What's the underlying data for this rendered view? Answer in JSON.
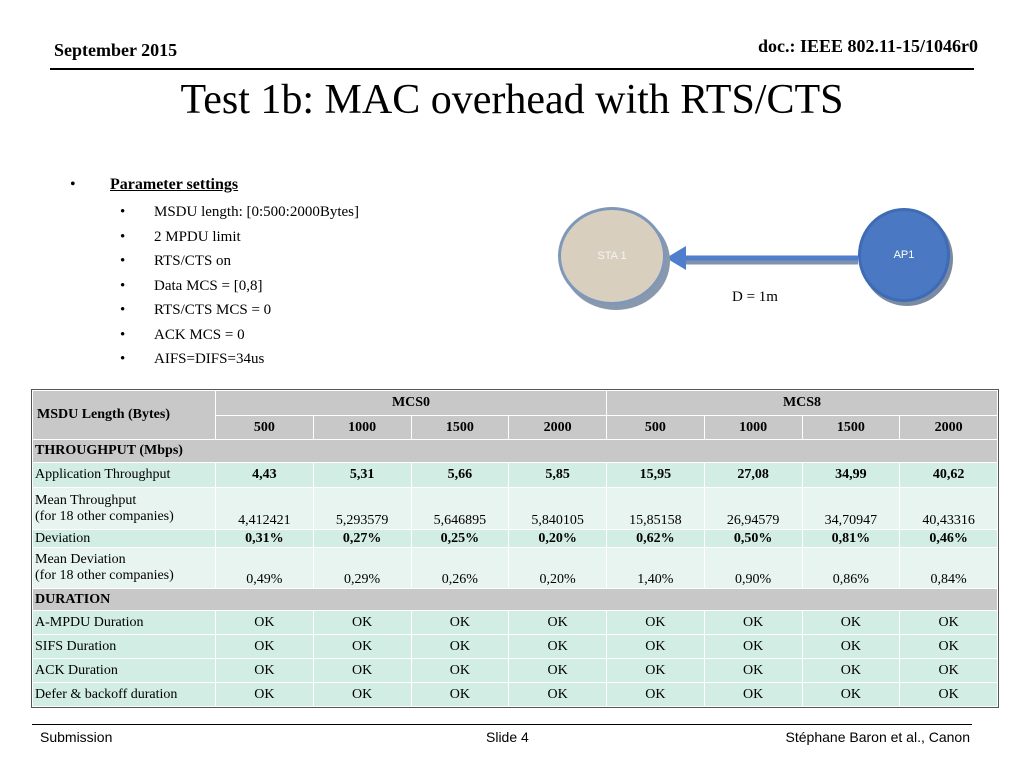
{
  "header": {
    "date": "September 2015",
    "doc": "doc.: IEEE 802.11-15/1046r0"
  },
  "title": "Test 1b: MAC overhead with RTS/CTS",
  "bullets": {
    "heading": "Parameter settings",
    "items": [
      "MSDU length: [0:500:2000Bytes]",
      "2 MPDU limit",
      "RTS/CTS on",
      "Data MCS = [0,8]",
      "RTS/CTS MCS = 0",
      "ACK MCS = 0",
      "AIFS=DIFS=34us"
    ]
  },
  "diagram": {
    "sta": "STA 1",
    "ap": "AP1",
    "distance": "D = 1m"
  },
  "table": {
    "row_header": "MSDU Length (Bytes)",
    "groups": [
      "MCS0",
      "MCS8"
    ],
    "lengths": [
      "500",
      "1000",
      "1500",
      "2000",
      "500",
      "1000",
      "1500",
      "2000"
    ],
    "throughput_section": "THROUGHPUT (Mbps)",
    "app_throughput": {
      "label": "Application Throughput",
      "values": [
        "4,43",
        "5,31",
        "5,66",
        "5,85",
        "15,95",
        "27,08",
        "34,99",
        "40,62"
      ]
    },
    "mean_throughput": {
      "label1": "Mean Throughput",
      "label2": "(for 18 other companies)",
      "values": [
        "4,412421",
        "5,293579",
        "5,646895",
        "5,840105",
        "15,85158",
        "26,94579",
        "34,70947",
        "40,43316"
      ]
    },
    "deviation": {
      "label": "Deviation",
      "values": [
        "0,31%",
        "0,27%",
        "0,25%",
        "0,20%",
        "0,62%",
        "0,50%",
        "0,81%",
        "0,46%"
      ]
    },
    "mean_deviation": {
      "label1": "Mean Deviation",
      "label2": "(for 18 other companies)",
      "values": [
        "0,49%",
        "0,29%",
        "0,26%",
        "0,20%",
        "1,40%",
        "0,90%",
        "0,86%",
        "0,84%"
      ]
    },
    "duration_section": "DURATION",
    "ampdu": {
      "label": "A-MPDU Duration",
      "values": [
        "OK",
        "OK",
        "OK",
        "OK",
        "OK",
        "OK",
        "OK",
        "OK"
      ]
    },
    "sifs": {
      "label": "SIFS Duration",
      "values": [
        "OK",
        "OK",
        "OK",
        "OK",
        "OK",
        "OK",
        "OK",
        "OK"
      ]
    },
    "ack": {
      "label": "ACK Duration",
      "values": [
        "OK",
        "OK",
        "OK",
        "OK",
        "OK",
        "OK",
        "OK",
        "OK"
      ]
    },
    "defer": {
      "label": "Defer & backoff duration",
      "values": [
        "OK",
        "OK",
        "OK",
        "OK",
        "OK",
        "OK",
        "OK",
        "OK"
      ]
    }
  },
  "footer": {
    "left": "Submission",
    "center": "Slide 4",
    "right": "Stéphane Baron et al., Canon"
  }
}
